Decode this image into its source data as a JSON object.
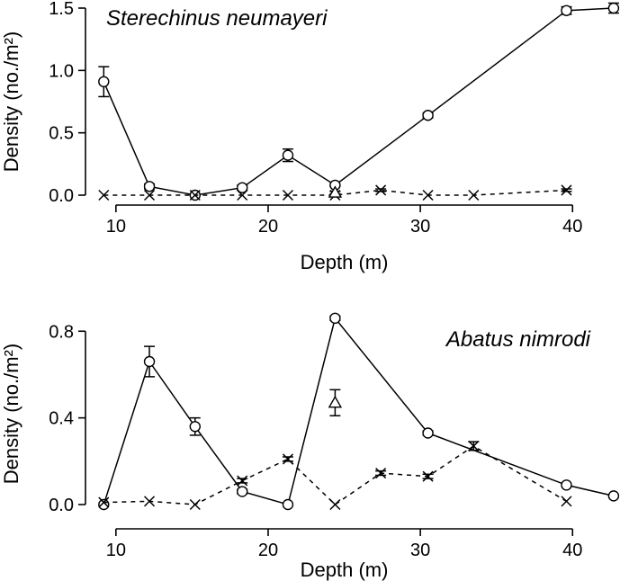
{
  "chart_data": [
    {
      "type": "line",
      "title": "Sterechinus neumayeri",
      "xlabel": "Depth (m)",
      "ylabel": "Density (no./m²)",
      "xlim": [
        8,
        43
      ],
      "ylim": [
        0,
        1.5
      ],
      "xticks": [
        10,
        20,
        30,
        40
      ],
      "yticks": [
        0.0,
        0.5,
        1.0,
        1.5
      ],
      "xtick_labels": [
        "10",
        "20",
        "30",
        "40"
      ],
      "ytick_labels": [
        "0.0",
        "0.5",
        "1.0",
        "1.5"
      ],
      "series": [
        {
          "marker": "circle",
          "line": "solid",
          "points": [
            {
              "x": 9.2,
              "y": 0.91,
              "err": 0.12
            },
            {
              "x": 12.2,
              "y": 0.07,
              "err": 0.02
            },
            {
              "x": 15.2,
              "y": 0.0,
              "err": 0
            },
            {
              "x": 18.3,
              "y": 0.06,
              "err": 0.02
            },
            {
              "x": 21.3,
              "y": 0.32,
              "err": 0.05
            },
            {
              "x": 24.4,
              "y": 0.08,
              "err": 0.01
            },
            {
              "x": 30.5,
              "y": 0.64,
              "err": 0.02
            },
            {
              "x": 39.6,
              "y": 1.48,
              "err": 0.03
            },
            {
              "x": 42.7,
              "y": 1.5,
              "err": 0.04
            }
          ]
        },
        {
          "marker": "x",
          "line": "dashed",
          "points": [
            {
              "x": 9.2,
              "y": 0.0,
              "err": 0
            },
            {
              "x": 12.2,
              "y": 0.0,
              "err": 0
            },
            {
              "x": 15.2,
              "y": 0.0,
              "err": 0
            },
            {
              "x": 18.3,
              "y": 0.0,
              "err": 0
            },
            {
              "x": 21.3,
              "y": 0.0,
              "err": 0
            },
            {
              "x": 24.4,
              "y": 0.0,
              "err": 0
            },
            {
              "x": 27.4,
              "y": 0.04,
              "err": 0.01
            },
            {
              "x": 30.5,
              "y": 0.0,
              "err": 0
            },
            {
              "x": 33.5,
              "y": 0.0,
              "err": 0
            },
            {
              "x": 39.6,
              "y": 0.04,
              "err": 0.01
            }
          ]
        },
        {
          "marker": "triangle",
          "line": "none",
          "points": [
            {
              "x": 24.4,
              "y": 0.02,
              "err": 0.01
            }
          ]
        }
      ]
    },
    {
      "type": "line",
      "title": "Abatus nimrodi",
      "xlabel": "Depth (m)",
      "ylabel": "Density (no./m²)",
      "xlim": [
        8,
        43
      ],
      "ylim": [
        0,
        0.88
      ],
      "xticks": [
        10,
        20,
        30,
        40
      ],
      "yticks": [
        0.0,
        0.4,
        0.8
      ],
      "xtick_labels": [
        "10",
        "20",
        "30",
        "40"
      ],
      "ytick_labels": [
        "0.0",
        "0.4",
        "0.8"
      ],
      "series": [
        {
          "marker": "circle",
          "line": "solid",
          "points": [
            {
              "x": 9.2,
              "y": 0.0,
              "err": 0
            },
            {
              "x": 12.2,
              "y": 0.66,
              "err": 0.07
            },
            {
              "x": 15.2,
              "y": 0.36,
              "err": 0.04
            },
            {
              "x": 18.3,
              "y": 0.06,
              "err": 0.01
            },
            {
              "x": 21.3,
              "y": 0.0,
              "err": 0
            },
            {
              "x": 24.4,
              "y": 0.86,
              "err": 0.01
            },
            {
              "x": 30.5,
              "y": 0.33,
              "err": 0.01
            },
            {
              "x": 39.6,
              "y": 0.09,
              "err": 0.005
            },
            {
              "x": 42.7,
              "y": 0.04,
              "err": 0.005
            }
          ]
        },
        {
          "marker": "x",
          "line": "dashed",
          "points": [
            {
              "x": 9.2,
              "y": 0.01,
              "err": 0
            },
            {
              "x": 12.2,
              "y": 0.015,
              "err": 0
            },
            {
              "x": 15.2,
              "y": 0.0,
              "err": 0
            },
            {
              "x": 18.3,
              "y": 0.11,
              "err": 0.01
            },
            {
              "x": 21.3,
              "y": 0.21,
              "err": 0.01
            },
            {
              "x": 24.4,
              "y": 0.0,
              "err": 0
            },
            {
              "x": 27.4,
              "y": 0.145,
              "err": 0.01
            },
            {
              "x": 30.5,
              "y": 0.13,
              "err": 0.01
            },
            {
              "x": 33.5,
              "y": 0.27,
              "err": 0.02
            },
            {
              "x": 39.6,
              "y": 0.015,
              "err": 0
            }
          ]
        },
        {
          "marker": "triangle",
          "line": "none",
          "points": [
            {
              "x": 24.4,
              "y": 0.47,
              "err": 0.06
            }
          ]
        }
      ]
    }
  ]
}
